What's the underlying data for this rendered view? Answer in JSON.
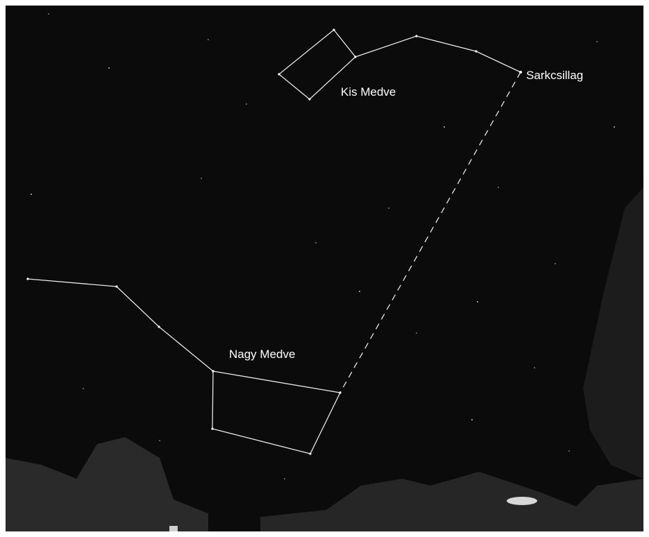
{
  "labels": {
    "little_dipper": "Kis Medve",
    "polaris": "Sarkcsillag",
    "big_dipper": "Nagy Medve"
  }
}
